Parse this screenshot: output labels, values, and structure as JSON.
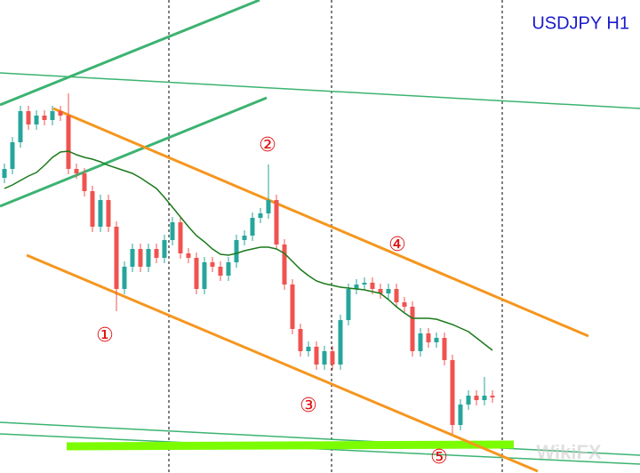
{
  "chart_data": {
    "type": "candlestick",
    "title": "USDJPY H1",
    "categories": [
      null,
      null,
      null,
      null,
      null,
      null,
      null,
      null,
      null,
      null,
      null,
      null,
      null,
      null,
      null,
      null,
      null,
      null,
      null,
      null,
      null,
      null,
      null,
      null,
      null,
      null,
      null,
      null,
      null,
      null,
      null,
      null,
      null,
      null,
      null,
      null,
      null,
      null,
      null,
      null,
      null,
      null,
      null,
      null,
      null,
      null,
      null,
      null,
      null,
      null,
      null,
      null,
      null,
      null,
      null,
      null,
      null,
      null,
      null,
      null,
      null,
      null
    ],
    "open": [
      332,
      342,
      372,
      407,
      392,
      402,
      397,
      407,
      402,
      342,
      337,
      317,
      277,
      307,
      277,
      207,
      232,
      252,
      232,
      252,
      242,
      262,
      282,
      247,
      242,
      207,
      237,
      232,
      222,
      237,
      262,
      267,
      287,
      292,
      307,
      257,
      212,
      162,
      137,
      142,
      122,
      137,
      122,
      172,
      207,
      212,
      214,
      207,
      202,
      207,
      192,
      187,
      137,
      157,
      147,
      152,
      127,
      54,
      77,
      87,
      82,
      87
    ],
    "high": [
      348,
      378,
      413,
      413,
      408,
      408,
      413,
      413,
      427,
      348,
      343,
      323,
      313,
      313,
      283,
      238,
      258,
      258,
      258,
      258,
      268,
      288,
      288,
      253,
      248,
      243,
      243,
      238,
      243,
      268,
      273,
      293,
      298,
      347,
      313,
      263,
      218,
      168,
      148,
      148,
      143,
      143,
      178,
      213,
      218,
      220,
      220,
      213,
      213,
      213,
      198,
      193,
      163,
      163,
      158,
      158,
      133,
      83,
      93,
      93,
      108,
      93
    ],
    "low": [
      326,
      336,
      366,
      386,
      386,
      391,
      391,
      396,
      336,
      331,
      311,
      271,
      271,
      271,
      182,
      201,
      226,
      226,
      226,
      236,
      236,
      256,
      241,
      236,
      201,
      201,
      226,
      216,
      216,
      231,
      256,
      261,
      281,
      286,
      251,
      206,
      156,
      131,
      131,
      116,
      116,
      116,
      116,
      166,
      201,
      206,
      201,
      196,
      196,
      186,
      181,
      131,
      131,
      141,
      141,
      121,
      44,
      48,
      71,
      76,
      76,
      79
    ],
    "close": [
      342,
      372,
      407,
      392,
      402,
      397,
      407,
      402,
      342,
      337,
      317,
      277,
      307,
      277,
      207,
      232,
      252,
      232,
      252,
      242,
      262,
      282,
      247,
      242,
      207,
      237,
      232,
      222,
      237,
      262,
      267,
      287,
      292,
      307,
      257,
      212,
      162,
      137,
      142,
      122,
      137,
      122,
      172,
      207,
      212,
      214,
      207,
      202,
      207,
      192,
      187,
      137,
      157,
      147,
      152,
      127,
      54,
      77,
      87,
      82,
      87,
      85
    ],
    "moving_average": {
      "color": "#1a7a1a",
      "values": [
        320,
        324,
        329,
        334,
        338,
        346,
        355,
        361,
        362,
        358,
        355,
        353,
        350,
        346,
        343,
        340,
        337,
        332,
        326,
        320,
        310,
        299,
        288,
        277,
        267,
        260,
        252,
        246,
        245,
        247,
        250,
        252,
        254,
        254,
        252,
        247,
        238,
        229,
        222,
        216,
        213,
        211,
        209,
        208,
        207,
        206,
        204,
        202,
        195,
        187,
        180,
        174,
        174,
        174,
        173,
        170,
        167,
        163,
        159,
        152,
        145,
        138
      ]
    },
    "up_color": "#26a69a",
    "down_color": "#ef5350",
    "ylim": [
      0,
      532
    ],
    "annotations": [
      "①",
      "②",
      "③",
      "④",
      "⑤"
    ],
    "watermark": "WikiFX"
  }
}
